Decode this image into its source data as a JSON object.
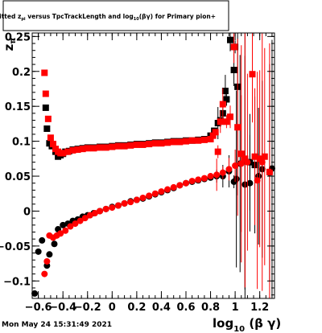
{
  "chart_data": {
    "type": "scatter",
    "title_parts": [
      "Fitted ",
      "z",
      "pi",
      " versus TpcTrackLength and log",
      "10",
      "(βγ) for Primary pion+"
    ],
    "ylabel_parts": [
      "z",
      "π"
    ],
    "xlabel_parts": [
      "log",
      "10",
      " (β γ)"
    ],
    "xlim": [
      -0.65,
      1.32
    ],
    "ylim": [
      -0.125,
      0.255
    ],
    "x_ticks": [
      -0.6,
      -0.4,
      -0.2,
      0,
      0.2,
      0.4,
      0.6,
      0.8,
      1,
      1.2
    ],
    "x_tick_labels": [
      "−0.6",
      "−0.4",
      "−0.2",
      "0",
      "0.2",
      "0.4",
      "0.6",
      "0.8",
      "1",
      "1.2"
    ],
    "y_ticks": [
      -0.1,
      -0.05,
      0,
      0.05,
      0.1,
      0.15,
      0.2,
      0.25
    ],
    "y_tick_labels": [
      "−0.1",
      "−0.05",
      "0",
      "0.05",
      "0.1",
      "0.15",
      "0.2",
      "0.25"
    ],
    "grid": false,
    "legend": "none",
    "series": [
      {
        "marker": "square",
        "color": "#000000",
        "points": [
          [
            -0.54,
            0.148
          ],
          [
            -0.53,
            0.118
          ],
          [
            -0.51,
            0.097
          ],
          [
            -0.49,
            0.093
          ],
          [
            -0.46,
            0.085
          ],
          [
            -0.44,
            0.078
          ],
          [
            -0.42,
            0.08
          ],
          [
            -0.4,
            0.082
          ],
          [
            -0.38,
            0.085
          ],
          [
            -0.35,
            0.086
          ],
          [
            -0.32,
            0.088
          ],
          [
            -0.28,
            0.089
          ],
          [
            -0.24,
            0.09
          ],
          [
            -0.2,
            0.091
          ],
          [
            -0.15,
            0.091
          ],
          [
            -0.1,
            0.092
          ],
          [
            -0.05,
            0.092
          ],
          [
            0.0,
            0.093
          ],
          [
            0.05,
            0.094
          ],
          [
            0.1,
            0.094
          ],
          [
            0.15,
            0.095
          ],
          [
            0.2,
            0.096
          ],
          [
            0.25,
            0.096
          ],
          [
            0.3,
            0.097
          ],
          [
            0.35,
            0.098
          ],
          [
            0.4,
            0.098
          ],
          [
            0.45,
            0.099
          ],
          [
            0.5,
            0.1
          ],
          [
            0.55,
            0.1
          ],
          [
            0.6,
            0.101
          ],
          [
            0.65,
            0.101
          ],
          [
            0.7,
            0.102
          ],
          [
            0.75,
            0.103
          ],
          [
            0.8,
            0.108
          ],
          [
            0.83,
            0.115
          ],
          [
            0.86,
            0.126
          ],
          [
            0.88,
            0.13
          ],
          [
            0.9,
            0.14
          ],
          [
            0.92,
            0.172
          ],
          [
            0.93,
            0.16
          ],
          [
            0.96,
            0.245
          ],
          [
            0.99,
            0.202
          ],
          [
            1.0,
            0.235
          ],
          [
            1.02,
            0.178
          ],
          [
            1.08,
            0.072
          ],
          [
            1.12,
            0.07
          ],
          [
            1.16,
            0.066
          ]
        ]
      },
      {
        "marker": "circle",
        "color": "#000000",
        "points": [
          [
            -0.63,
            -0.118
          ],
          [
            -0.6,
            -0.058
          ],
          [
            -0.57,
            -0.042
          ],
          [
            -0.53,
            -0.078
          ],
          [
            -0.51,
            -0.062
          ],
          [
            -0.47,
            -0.047
          ],
          [
            -0.44,
            -0.026
          ],
          [
            -0.4,
            -0.02
          ],
          [
            -0.36,
            -0.018
          ],
          [
            -0.32,
            -0.014
          ],
          [
            -0.28,
            -0.012
          ],
          [
            -0.24,
            -0.008
          ],
          [
            -0.2,
            -0.006
          ],
          [
            -0.15,
            -0.003
          ],
          [
            -0.1,
            0.0
          ],
          [
            -0.05,
            0.003
          ],
          [
            0.0,
            0.006
          ],
          [
            0.05,
            0.008
          ],
          [
            0.1,
            0.011
          ],
          [
            0.15,
            0.014
          ],
          [
            0.2,
            0.016
          ],
          [
            0.25,
            0.018
          ],
          [
            0.3,
            0.021
          ],
          [
            0.35,
            0.024
          ],
          [
            0.4,
            0.027
          ],
          [
            0.45,
            0.03
          ],
          [
            0.5,
            0.033
          ],
          [
            0.55,
            0.037
          ],
          [
            0.6,
            0.04
          ],
          [
            0.65,
            0.042
          ],
          [
            0.7,
            0.044
          ],
          [
            0.75,
            0.046
          ],
          [
            0.8,
            0.048
          ],
          [
            0.85,
            0.05
          ],
          [
            0.9,
            0.05
          ],
          [
            0.95,
            0.057
          ],
          [
            0.99,
            0.042
          ],
          [
            1.01,
            0.046
          ],
          [
            1.04,
            0.068
          ],
          [
            1.08,
            0.038
          ],
          [
            1.12,
            0.04
          ],
          [
            1.19,
            0.05
          ],
          [
            1.22,
            0.06
          ],
          [
            1.28,
            0.055
          ],
          [
            1.3,
            0.061
          ]
        ]
      },
      {
        "marker": "square",
        "color": "#ff0000",
        "points": [
          [
            -0.55,
            0.198
          ],
          [
            -0.54,
            0.168
          ],
          [
            -0.52,
            0.132
          ],
          [
            -0.5,
            0.105
          ],
          [
            -0.48,
            0.096
          ],
          [
            -0.46,
            0.089
          ],
          [
            -0.44,
            0.085
          ],
          [
            -0.42,
            0.083
          ],
          [
            -0.4,
            0.083
          ],
          [
            -0.36,
            0.085
          ],
          [
            -0.32,
            0.087
          ],
          [
            -0.28,
            0.088
          ],
          [
            -0.24,
            0.089
          ],
          [
            -0.2,
            0.09
          ],
          [
            -0.15,
            0.09
          ],
          [
            -0.1,
            0.091
          ],
          [
            -0.05,
            0.091
          ],
          [
            0.0,
            0.092
          ],
          [
            0.05,
            0.093
          ],
          [
            0.1,
            0.093
          ],
          [
            0.15,
            0.094
          ],
          [
            0.2,
            0.095
          ],
          [
            0.25,
            0.095
          ],
          [
            0.3,
            0.096
          ],
          [
            0.35,
            0.097
          ],
          [
            0.4,
            0.097
          ],
          [
            0.45,
            0.098
          ],
          [
            0.5,
            0.099
          ],
          [
            0.55,
            0.099
          ],
          [
            0.6,
            0.1
          ],
          [
            0.65,
            0.101
          ],
          [
            0.7,
            0.101
          ],
          [
            0.75,
            0.102
          ],
          [
            0.8,
            0.103
          ],
          [
            0.82,
            0.108
          ],
          [
            0.84,
            0.113
          ],
          [
            0.86,
            0.085
          ],
          [
            0.88,
            0.128
          ],
          [
            0.9,
            0.153
          ],
          [
            0.93,
            0.128
          ],
          [
            0.96,
            0.135
          ],
          [
            0.99,
            0.235
          ],
          [
            1.02,
            0.12
          ],
          [
            1.05,
            0.082
          ],
          [
            1.08,
            0.075
          ],
          [
            1.14,
            0.196
          ],
          [
            1.16,
            0.078
          ],
          [
            1.2,
            0.075
          ],
          [
            1.24,
            0.078
          ],
          [
            1.28,
            0.056
          ]
        ]
      },
      {
        "marker": "circle",
        "color": "#ff0000",
        "points": [
          [
            -0.55,
            -0.09
          ],
          [
            -0.53,
            -0.072
          ],
          [
            -0.51,
            -0.035
          ],
          [
            -0.48,
            -0.038
          ],
          [
            -0.45,
            -0.035
          ],
          [
            -0.42,
            -0.032
          ],
          [
            -0.38,
            -0.028
          ],
          [
            -0.34,
            -0.022
          ],
          [
            -0.3,
            -0.018
          ],
          [
            -0.26,
            -0.014
          ],
          [
            -0.22,
            -0.01
          ],
          [
            -0.18,
            -0.006
          ],
          [
            -0.14,
            -0.003
          ],
          [
            -0.1,
            0.0
          ],
          [
            -0.05,
            0.003
          ],
          [
            0.0,
            0.005
          ],
          [
            0.05,
            0.008
          ],
          [
            0.1,
            0.011
          ],
          [
            0.15,
            0.013
          ],
          [
            0.2,
            0.016
          ],
          [
            0.25,
            0.019
          ],
          [
            0.3,
            0.022
          ],
          [
            0.35,
            0.025
          ],
          [
            0.4,
            0.028
          ],
          [
            0.45,
            0.031
          ],
          [
            0.5,
            0.034
          ],
          [
            0.55,
            0.037
          ],
          [
            0.6,
            0.04
          ],
          [
            0.65,
            0.043
          ],
          [
            0.7,
            0.045
          ],
          [
            0.75,
            0.047
          ],
          [
            0.8,
            0.05
          ],
          [
            0.85,
            0.052
          ],
          [
            0.9,
            0.055
          ],
          [
            0.95,
            0.06
          ],
          [
            1.0,
            0.065
          ],
          [
            1.05,
            0.068
          ],
          [
            1.1,
            0.07
          ],
          [
            1.18,
            0.044
          ],
          [
            1.22,
            0.07
          ]
        ]
      }
    ]
  },
  "timestamp": "Mon May 24 15:31:49 2021"
}
